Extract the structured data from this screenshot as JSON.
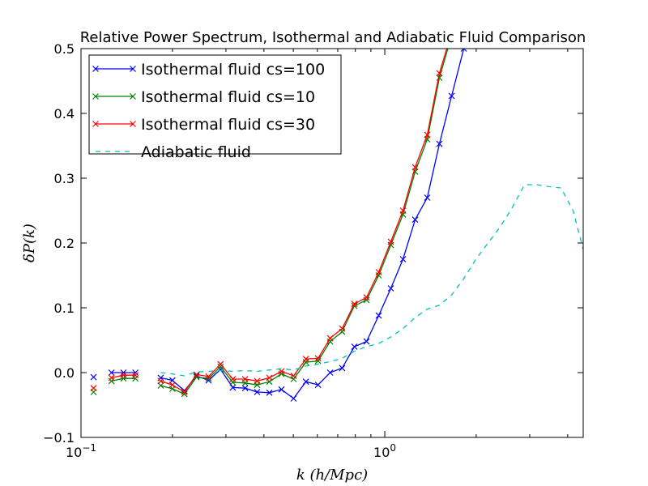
{
  "chart_data": {
    "type": "line",
    "title": "Relative Power Spectrum, Isothermal and Adiabatic Fluid Comparison",
    "xlabel": "k (h/Mpc)",
    "ylabel": "δP(k)",
    "xscale": "log",
    "xlim": [
      0.1,
      4.5
    ],
    "ylim": [
      -0.1,
      0.5
    ],
    "xticks": [
      {
        "value": 0.1,
        "base": "10",
        "exp": "−1"
      },
      {
        "value": 1.0,
        "base": "10",
        "exp": "0"
      }
    ],
    "yticks": [
      {
        "value": -0.1,
        "label": "−0.1"
      },
      {
        "value": 0.0,
        "label": "0.0"
      },
      {
        "value": 0.1,
        "label": "0.1"
      },
      {
        "value": 0.2,
        "label": "0.2"
      },
      {
        "value": 0.3,
        "label": "0.3"
      },
      {
        "value": 0.4,
        "label": "0.4"
      },
      {
        "value": 0.5,
        "label": "0.5"
      }
    ],
    "grid": false,
    "legend_position": "top-left",
    "series": [
      {
        "name": "Isothermal fluid cs=100",
        "color": "#0000ff",
        "style": "solid",
        "marker": "x",
        "segments": [
          {
            "x": [
              0.11
            ],
            "y": [
              -0.007
            ]
          },
          {
            "x": [
              0.126,
              0.138,
              0.151
            ],
            "y": [
              0.0,
              0.0,
              0.0
            ]
          },
          {
            "x": [
              0.183,
              0.2,
              0.219,
              0.24,
              0.263,
              0.288,
              0.316,
              0.347,
              0.38,
              0.417,
              0.457,
              0.501,
              0.55,
              0.603,
              0.661,
              0.724,
              0.794,
              0.871,
              0.955,
              1.047,
              1.148,
              1.259,
              1.38,
              1.513,
              1.66,
              1.82,
              1.995
            ],
            "y": [
              -0.008,
              -0.012,
              -0.028,
              -0.005,
              -0.012,
              0.005,
              -0.023,
              -0.024,
              -0.03,
              -0.031,
              -0.026,
              -0.04,
              -0.014,
              -0.019,
              0.0,
              0.007,
              0.04,
              0.048,
              0.088,
              0.13,
              0.175,
              0.236,
              0.27,
              0.353,
              0.427,
              0.5,
              0.56
            ]
          }
        ]
      },
      {
        "name": "Isothermal fluid cs=10",
        "color": "#008000",
        "style": "solid",
        "marker": "x",
        "segments": [
          {
            "x": [
              0.11
            ],
            "y": [
              -0.03
            ]
          },
          {
            "x": [
              0.126,
              0.138,
              0.151
            ],
            "y": [
              -0.013,
              -0.009,
              -0.009
            ]
          },
          {
            "x": [
              0.183,
              0.2,
              0.219,
              0.24,
              0.263,
              0.288,
              0.316,
              0.347,
              0.38,
              0.417,
              0.457,
              0.501,
              0.55,
              0.603,
              0.661,
              0.724,
              0.794,
              0.871,
              0.955,
              1.047,
              1.148,
              1.259,
              1.38,
              1.513,
              1.66,
              1.82
            ],
            "y": [
              -0.02,
              -0.025,
              -0.033,
              -0.007,
              -0.009,
              0.009,
              -0.015,
              -0.016,
              -0.019,
              -0.014,
              -0.002,
              -0.01,
              0.016,
              0.018,
              0.048,
              0.063,
              0.103,
              0.112,
              0.15,
              0.197,
              0.244,
              0.31,
              0.36,
              0.455,
              0.52,
              0.56
            ]
          }
        ]
      },
      {
        "name": "Isothermal fluid cs=30",
        "color": "#ff0000",
        "style": "solid",
        "marker": "x",
        "segments": [
          {
            "x": [
              0.11
            ],
            "y": [
              -0.024
            ]
          },
          {
            "x": [
              0.126,
              0.138,
              0.151
            ],
            "y": [
              -0.008,
              -0.004,
              -0.004
            ]
          },
          {
            "x": [
              0.183,
              0.2,
              0.219,
              0.24,
              0.263,
              0.288,
              0.316,
              0.347,
              0.38,
              0.417,
              0.457,
              0.501,
              0.55,
              0.603,
              0.661,
              0.724,
              0.794,
              0.871,
              0.955,
              1.047,
              1.148,
              1.259,
              1.38,
              1.513,
              1.66,
              1.82
            ],
            "y": [
              -0.013,
              -0.019,
              -0.03,
              -0.003,
              -0.006,
              0.013,
              -0.01,
              -0.01,
              -0.013,
              -0.008,
              0.002,
              -0.005,
              0.021,
              0.022,
              0.053,
              0.068,
              0.106,
              0.116,
              0.155,
              0.202,
              0.25,
              0.317,
              0.367,
              0.462,
              0.525,
              0.56
            ]
          }
        ]
      },
      {
        "name": "Adiabatic fluid",
        "color": "#00bfbf",
        "style": "dashed",
        "marker": "",
        "segments": [
          {
            "x": [
              0.183,
              0.2,
              0.219,
              0.24,
              0.263,
              0.288,
              0.316,
              0.347,
              0.38,
              0.417,
              0.457,
              0.501,
              0.55,
              0.603,
              0.661,
              0.724,
              0.794,
              0.871,
              0.955,
              1.047,
              1.148,
              1.259,
              1.38,
              1.513,
              1.66,
              1.82,
              1.995,
              2.188,
              2.399,
              2.63,
              2.884,
              3.162,
              3.467,
              3.802,
              4.169,
              4.5
            ],
            "y": [
              0.0,
              -0.002,
              -0.005,
              0.001,
              0.002,
              0.003,
              0.002,
              0.003,
              0.002,
              0.004,
              0.006,
              0.004,
              0.01,
              0.013,
              0.017,
              0.022,
              0.033,
              0.04,
              0.045,
              0.055,
              0.068,
              0.085,
              0.098,
              0.104,
              0.12,
              0.145,
              0.175,
              0.2,
              0.225,
              0.255,
              0.29,
              0.29,
              0.287,
              0.285,
              0.25,
              0.19
            ]
          }
        ]
      }
    ]
  }
}
